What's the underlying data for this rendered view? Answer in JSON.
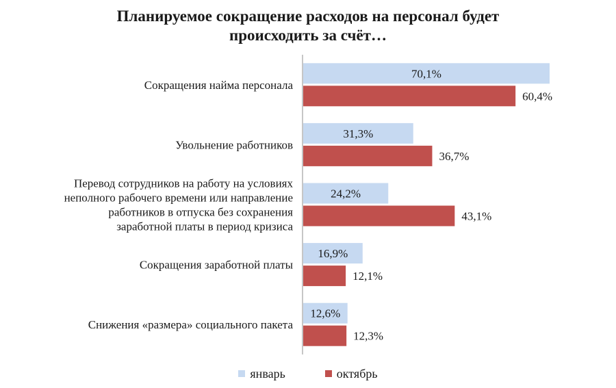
{
  "chart_data": {
    "type": "bar",
    "orientation": "horizontal",
    "title_lines": [
      "Планируемое сокращение расходов на персонал будет",
      "происходить за счёт…"
    ],
    "categories": [
      [
        "Сокращения найма персонала"
      ],
      [
        "Увольнение работников"
      ],
      [
        "Перевод  сотрудников на работу на условиях",
        "неполного рабочего времени или направление",
        "работников в отпуска без сохранения",
        "заработной платы в период кризиса"
      ],
      [
        "Сокращения заработной платы"
      ],
      [
        "Снижения «размера» социального пакета"
      ]
    ],
    "series": [
      {
        "name": "январь",
        "color": "#c6d9f1",
        "values": [
          70.1,
          31.3,
          24.2,
          16.9,
          12.6
        ],
        "labels": [
          "70,1%",
          "31,3%",
          "24,2%",
          "16,9%",
          "12,6%"
        ]
      },
      {
        "name": "октябрь",
        "color": "#c0504d",
        "values": [
          60.4,
          36.7,
          43.1,
          12.1,
          12.3
        ],
        "labels": [
          "60,4%",
          "36,7%",
          "43,1%",
          "12,1%",
          "12,3%"
        ]
      }
    ],
    "xlim": [
      0,
      80
    ],
    "legend_position": "bottom"
  }
}
